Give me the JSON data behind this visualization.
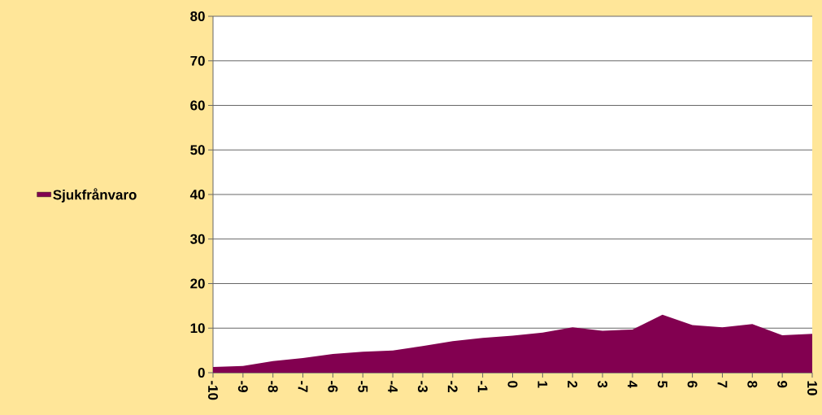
{
  "chart_data": {
    "type": "area",
    "x": [
      -10,
      -9,
      -8,
      -7,
      -6,
      -5,
      -4,
      -3,
      -2,
      -1,
      0,
      1,
      2,
      3,
      4,
      5,
      6,
      7,
      8,
      9,
      10
    ],
    "series": [
      {
        "name": "Sjukfrånvaro",
        "color": "#820050",
        "values": [
          1.3,
          1.5,
          2.6,
          3.3,
          4.2,
          4.7,
          5.0,
          6.0,
          7.1,
          7.8,
          8.3,
          9.0,
          10.2,
          9.4,
          9.7,
          13.0,
          10.7,
          10.2,
          10.9,
          8.4,
          8.7
        ]
      }
    ],
    "xlim": [
      -10,
      10
    ],
    "xticks": [
      -10,
      -9,
      -8,
      -7,
      -6,
      -5,
      -4,
      -3,
      -2,
      -1,
      0,
      1,
      2,
      3,
      4,
      5,
      6,
      7,
      8,
      9,
      10
    ],
    "ylim": [
      0,
      80
    ],
    "yticks": [
      0,
      10,
      20,
      30,
      40,
      50,
      60,
      70,
      80
    ],
    "grid": "y",
    "legend": "left"
  }
}
